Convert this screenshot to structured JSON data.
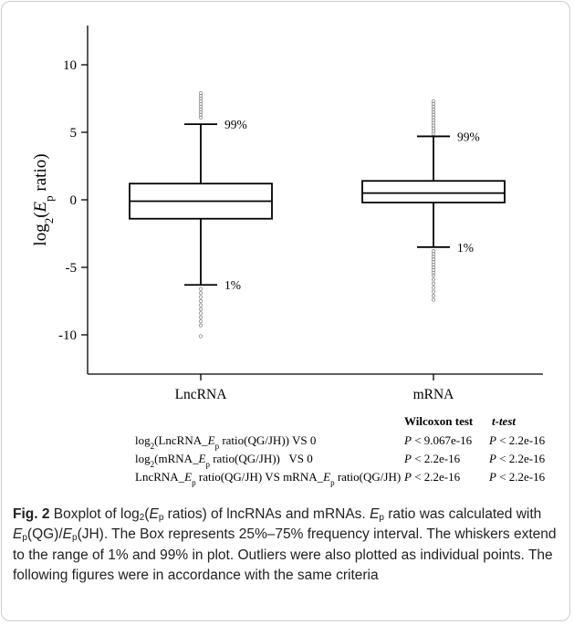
{
  "chart_data": {
    "type": "boxplot",
    "ylabel": "log2(Ep ratio)",
    "ylim": [
      -13,
      13
    ],
    "yticks": [
      10,
      5,
      0,
      -5,
      -10
    ],
    "ytick_labels": [
      "10",
      "5",
      "0",
      "-5",
      "-10"
    ],
    "categories": [
      "LncRNA",
      "mRNA"
    ],
    "boxes": [
      {
        "category": "LncRNA",
        "whisker_low": -6.3,
        "q1": -1.4,
        "median": -0.1,
        "q3": 1.2,
        "whisker_high": 5.6,
        "label_low": "1%",
        "label_high": "99%",
        "outliers": [
          6.1,
          6.3,
          6.5,
          6.7,
          6.9,
          7.1,
          7.3,
          7.5,
          7.7,
          7.9,
          -6.6,
          -6.9,
          -7.2,
          -7.5,
          -7.8,
          -8.1,
          -8.4,
          -8.7,
          -9.0,
          -9.3,
          -10.1
        ]
      },
      {
        "category": "mRNA",
        "whisker_low": -3.5,
        "q1": -0.2,
        "median": 0.5,
        "q3": 1.4,
        "whisker_high": 4.7,
        "label_low": "1%",
        "label_high": "99%",
        "outliers": [
          4.9,
          5.1,
          5.3,
          5.5,
          5.7,
          5.9,
          6.1,
          6.3,
          6.5,
          6.7,
          6.9,
          7.1,
          7.3,
          -3.8,
          -4.0,
          -4.2,
          -4.4,
          -4.6,
          -4.8,
          -5.0,
          -5.2,
          -5.4,
          -5.6,
          -5.9,
          -6.2,
          -6.5,
          -6.8,
          -7.1,
          -7.4
        ]
      }
    ]
  },
  "stats_table": {
    "headers": [
      "Wilcoxon test",
      "t-test"
    ],
    "rows": [
      {
        "label": "log2(LncRNA_Ep ratio(QG/JH)) VS 0",
        "wilcoxon": "P < 9.067e-16",
        "ttest": "P < 2.2e-16"
      },
      {
        "label": "log2(mRNA_Ep ratio(QG/JH))   VS 0",
        "wilcoxon": "P < 2.2e-16",
        "ttest": "P < 2.2e-16"
      },
      {
        "label": "LncRNA_Ep ratio(QG/JH) VS mRNA_Ep ratio(QG/JH)",
        "wilcoxon": "P < 2.2e-16",
        "ttest": "P < 2.2e-16"
      }
    ]
  },
  "caption": {
    "label": "Fig. 2",
    "text": "Boxplot of log2(Ep ratios) of lncRNAs and mRNAs. Ep ratio was calculated with Ep(QG)/Ep(JH). The Box represents 25%–75% frequency interval. The whiskers extend to the range of 1% and 99% in plot. Outliers were also plotted as individual points. The following figures were in accordance with the same criteria"
  }
}
